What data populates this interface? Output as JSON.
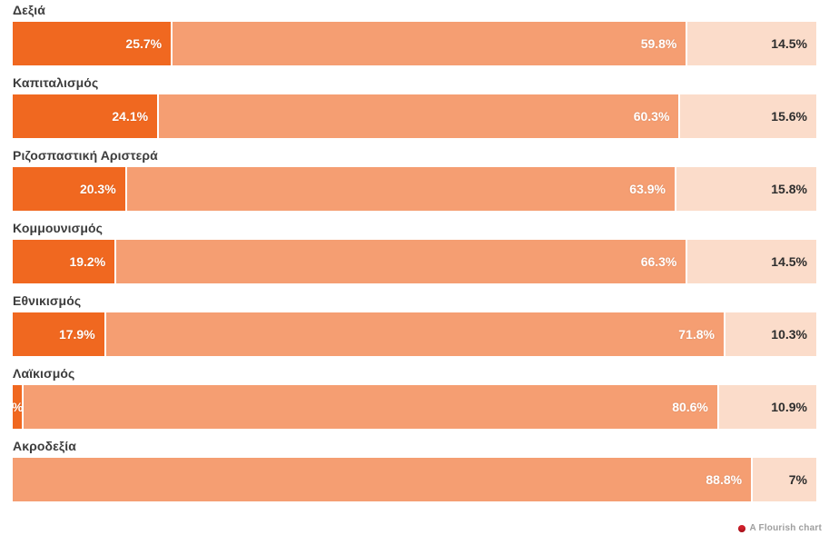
{
  "chart_data": {
    "type": "bar",
    "variant": "horizontal-stacked-proportional",
    "title": "",
    "xlabel": "",
    "ylabel": "",
    "legend": "none",
    "grid": false,
    "categories": [
      "Δεξιά",
      "Καπιταλισμός",
      "Ριζοσπαστική Αριστερά",
      "Κομμουνισμός",
      "Εθνικισμός",
      "Λαϊκισμός",
      "Ακροδεξία"
    ],
    "palette": {
      "dark": "#f06820",
      "medium": "#f59e72",
      "light": "#fbdcca"
    },
    "rows": [
      {
        "category": "Δεξιά",
        "segments": [
          {
            "label": "25.7%",
            "value": 25.7,
            "width_pct": 19.9,
            "tone": "dark"
          },
          {
            "label": "59.8%",
            "value": 59.8,
            "width_pct": 64.1,
            "tone": "medium"
          },
          {
            "label": "14.5%",
            "value": 14.5,
            "width_pct": 16.0,
            "tone": "light"
          }
        ]
      },
      {
        "category": "Καπιταλισμός",
        "segments": [
          {
            "label": "24.1%",
            "value": 24.1,
            "width_pct": 18.2,
            "tone": "dark"
          },
          {
            "label": "60.3%",
            "value": 60.3,
            "width_pct": 64.9,
            "tone": "medium"
          },
          {
            "label": "15.6%",
            "value": 15.6,
            "width_pct": 16.9,
            "tone": "light"
          }
        ]
      },
      {
        "category": "Ριζοσπαστική Αριστερά",
        "segments": [
          {
            "label": "20.3%",
            "value": 20.3,
            "width_pct": 14.2,
            "tone": "dark"
          },
          {
            "label": "63.9%",
            "value": 63.9,
            "width_pct": 68.4,
            "tone": "medium"
          },
          {
            "label": "15.8%",
            "value": 15.8,
            "width_pct": 17.4,
            "tone": "light"
          }
        ]
      },
      {
        "category": "Κομμουνισμός",
        "segments": [
          {
            "label": "19.2%",
            "value": 19.2,
            "width_pct": 12.9,
            "tone": "dark"
          },
          {
            "label": "66.3%",
            "value": 66.3,
            "width_pct": 71.1,
            "tone": "medium"
          },
          {
            "label": "14.5%",
            "value": 14.5,
            "width_pct": 16.0,
            "tone": "light"
          }
        ]
      },
      {
        "category": "Εθνικισμός",
        "segments": [
          {
            "label": "17.9%",
            "value": 17.9,
            "width_pct": 11.6,
            "tone": "dark"
          },
          {
            "label": "71.8%",
            "value": 71.8,
            "width_pct": 77.1,
            "tone": "medium"
          },
          {
            "label": "10.3%",
            "value": 10.3,
            "width_pct": 11.3,
            "tone": "light"
          }
        ]
      },
      {
        "category": "Λαϊκισμός",
        "segments": [
          {
            "label": "%",
            "clipped": true,
            "width_pct": 1.4,
            "tone": "dark"
          },
          {
            "label": "80.6%",
            "value": 80.6,
            "width_pct": 86.5,
            "tone": "medium"
          },
          {
            "label": "10.9%",
            "value": 10.9,
            "width_pct": 12.1,
            "tone": "light"
          }
        ]
      },
      {
        "category": "Ακροδεξία",
        "segments": [
          {
            "label": "88.8%",
            "value": 88.8,
            "width_pct": 92.1,
            "tone": "medium"
          },
          {
            "label": "7%",
            "value": 7.0,
            "width_pct": 7.9,
            "tone": "light"
          }
        ]
      }
    ]
  },
  "footer": {
    "credit": "A Flourish chart"
  }
}
